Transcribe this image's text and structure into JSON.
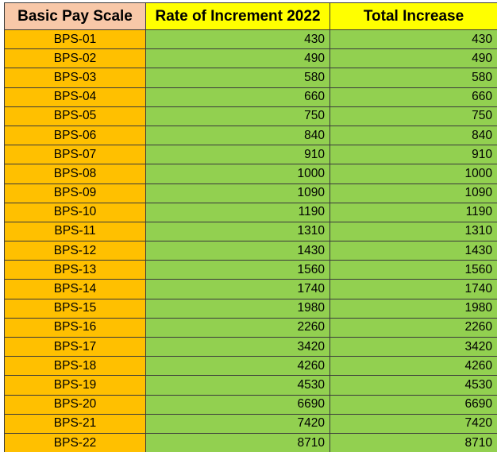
{
  "headers": {
    "scale": "Basic Pay Scale",
    "rate": "Rate of Increment 2022",
    "total": "Total Increase"
  },
  "colors": {
    "scale_header": "#f8c8a8",
    "rate_header": "#ffff00",
    "total_header": "#ffff00",
    "scale_cells": "#ffc000",
    "value_cells": "#92d050"
  },
  "rows": [
    {
      "scale": "BPS-01",
      "rate": "430",
      "total": "430"
    },
    {
      "scale": "BPS-02",
      "rate": "490",
      "total": "490"
    },
    {
      "scale": "BPS-03",
      "rate": "580",
      "total": "580"
    },
    {
      "scale": "BPS-04",
      "rate": "660",
      "total": "660"
    },
    {
      "scale": "BPS-05",
      "rate": "750",
      "total": "750"
    },
    {
      "scale": "BPS-06",
      "rate": "840",
      "total": "840"
    },
    {
      "scale": "BPS-07",
      "rate": "910",
      "total": "910"
    },
    {
      "scale": "BPS-08",
      "rate": "1000",
      "total": "1000"
    },
    {
      "scale": "BPS-09",
      "rate": "1090",
      "total": "1090"
    },
    {
      "scale": "BPS-10",
      "rate": "1190",
      "total": "1190"
    },
    {
      "scale": "BPS-11",
      "rate": "1310",
      "total": "1310"
    },
    {
      "scale": "BPS-12",
      "rate": "1430",
      "total": "1430"
    },
    {
      "scale": "BPS-13",
      "rate": "1560",
      "total": "1560"
    },
    {
      "scale": "BPS-14",
      "rate": "1740",
      "total": "1740"
    },
    {
      "scale": "BPS-15",
      "rate": "1980",
      "total": "1980"
    },
    {
      "scale": "BPS-16",
      "rate": "2260",
      "total": "2260"
    },
    {
      "scale": "BPS-17",
      "rate": "3420",
      "total": "3420"
    },
    {
      "scale": "BPS-18",
      "rate": "4260",
      "total": "4260"
    },
    {
      "scale": "BPS-19",
      "rate": "4530",
      "total": "4530"
    },
    {
      "scale": "BPS-20",
      "rate": "6690",
      "total": "6690"
    },
    {
      "scale": "BPS-21",
      "rate": "7420",
      "total": "7420"
    },
    {
      "scale": "BPS-22",
      "rate": "8710",
      "total": "8710"
    }
  ]
}
